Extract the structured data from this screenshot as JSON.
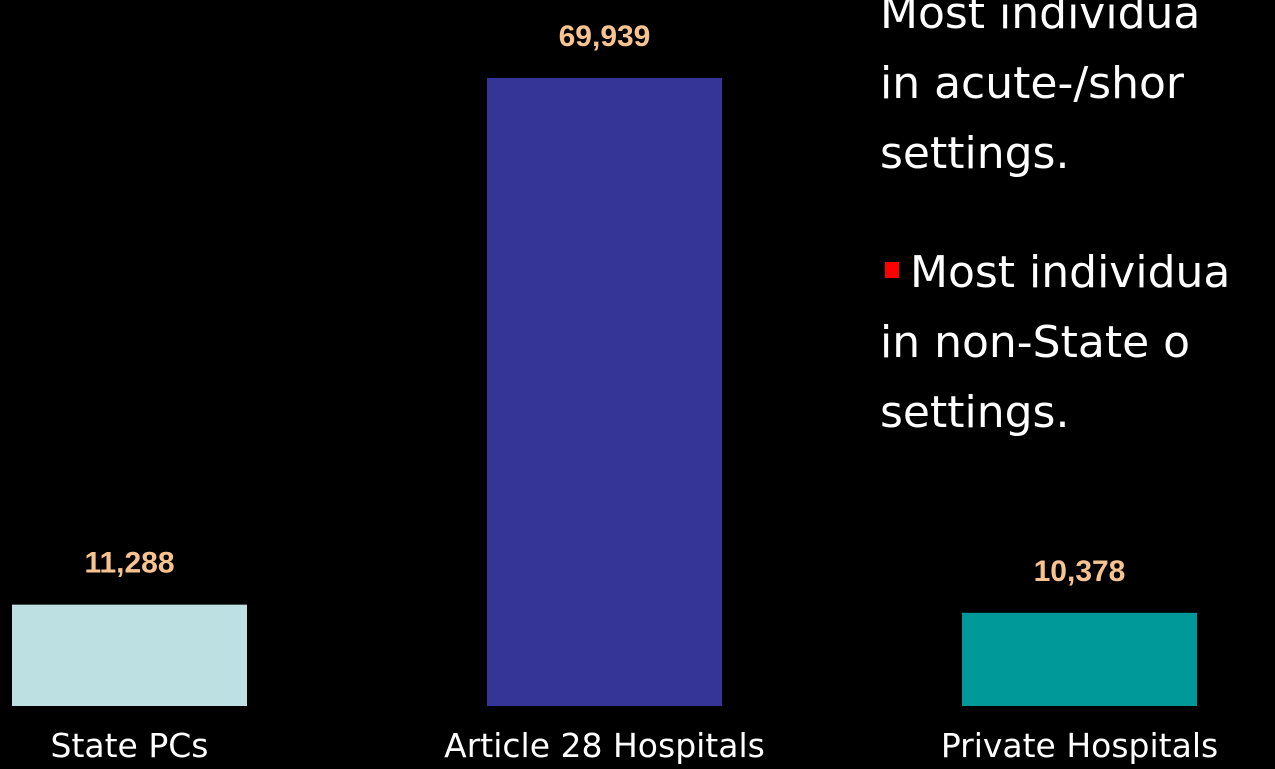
{
  "chart_data": {
    "type": "bar",
    "categories": [
      "State PCs",
      "Article 28 Hospitals",
      "Private Hospitals"
    ],
    "values": [
      11288,
      69939,
      10378
    ],
    "value_labels": [
      "11,288",
      "69,939",
      "10,378"
    ],
    "colors": [
      "#bde0e3",
      "#353597",
      "#009999"
    ]
  },
  "bullets": [
    [
      "Most individua",
      "in acute-/shor",
      "settings."
    ],
    [
      "Most individua",
      "in non-State o",
      "settings."
    ]
  ]
}
